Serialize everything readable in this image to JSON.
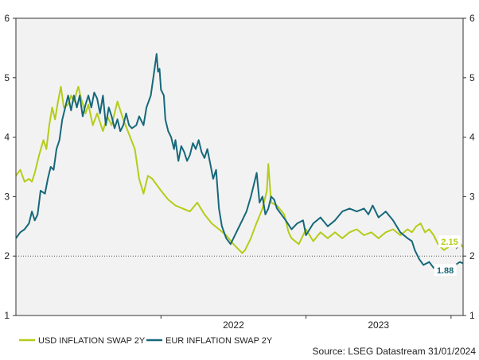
{
  "chart_data": {
    "type": "line",
    "title": "",
    "xlabel": "",
    "ylabel": "",
    "x_start": 2021.0,
    "x_end": 2024.083,
    "ylim": [
      1,
      6
    ],
    "yticks": [
      "1",
      "2",
      "3",
      "4",
      "5",
      "6"
    ],
    "xtick_labels": [
      {
        "label": "2022",
        "year": 2022.5
      },
      {
        "label": "2023",
        "year": 2023.5
      }
    ],
    "year_dividers": [
      2022.0,
      2023.0,
      2024.0
    ],
    "reference_line": 2,
    "series": [
      {
        "name": "USD INFLATION SWAP 2Y",
        "color": "#b5cc18",
        "points": [
          [
            2021.0,
            3.35
          ],
          [
            2021.03,
            3.45
          ],
          [
            2021.06,
            3.25
          ],
          [
            2021.09,
            3.3
          ],
          [
            2021.11,
            3.25
          ],
          [
            2021.13,
            3.4
          ],
          [
            2021.16,
            3.7
          ],
          [
            2021.19,
            3.95
          ],
          [
            2021.21,
            3.8
          ],
          [
            2021.23,
            4.2
          ],
          [
            2021.25,
            4.5
          ],
          [
            2021.27,
            4.3
          ],
          [
            2021.29,
            4.6
          ],
          [
            2021.31,
            4.85
          ],
          [
            2021.33,
            4.5
          ],
          [
            2021.36,
            4.55
          ],
          [
            2021.38,
            4.7
          ],
          [
            2021.4,
            4.6
          ],
          [
            2021.43,
            4.85
          ],
          [
            2021.45,
            4.65
          ],
          [
            2021.48,
            4.4
          ],
          [
            2021.5,
            4.55
          ],
          [
            2021.53,
            4.2
          ],
          [
            2021.56,
            4.4
          ],
          [
            2021.6,
            4.1
          ],
          [
            2021.63,
            4.35
          ],
          [
            2021.66,
            4.2
          ],
          [
            2021.7,
            4.6
          ],
          [
            2021.74,
            4.3
          ],
          [
            2021.78,
            4.05
          ],
          [
            2021.82,
            3.8
          ],
          [
            2021.85,
            3.3
          ],
          [
            2021.88,
            3.05
          ],
          [
            2021.91,
            3.35
          ],
          [
            2021.94,
            3.3
          ],
          [
            2021.97,
            3.2
          ],
          [
            2022.0,
            3.1
          ],
          [
            2022.05,
            2.95
          ],
          [
            2022.1,
            2.85
          ],
          [
            2022.15,
            2.8
          ],
          [
            2022.2,
            2.75
          ],
          [
            2022.25,
            2.9
          ],
          [
            2022.3,
            2.7
          ],
          [
            2022.35,
            2.55
          ],
          [
            2022.4,
            2.45
          ],
          [
            2022.45,
            2.35
          ],
          [
            2022.5,
            2.2
          ],
          [
            2022.54,
            2.1
          ],
          [
            2022.56,
            2.05
          ],
          [
            2022.58,
            2.1
          ],
          [
            2022.62,
            2.3
          ],
          [
            2022.65,
            2.5
          ],
          [
            2022.7,
            2.8
          ],
          [
            2022.73,
            3.1
          ],
          [
            2022.74,
            3.55
          ],
          [
            2022.76,
            2.9
          ],
          [
            2022.8,
            2.85
          ],
          [
            2022.85,
            2.7
          ],
          [
            2022.88,
            2.4
          ],
          [
            2022.9,
            2.3
          ],
          [
            2022.95,
            2.2
          ],
          [
            2023.0,
            2.45
          ],
          [
            2023.05,
            2.25
          ],
          [
            2023.1,
            2.4
          ],
          [
            2023.15,
            2.3
          ],
          [
            2023.2,
            2.4
          ],
          [
            2023.25,
            2.3
          ],
          [
            2023.3,
            2.4
          ],
          [
            2023.35,
            2.45
          ],
          [
            2023.4,
            2.35
          ],
          [
            2023.45,
            2.4
          ],
          [
            2023.5,
            2.3
          ],
          [
            2023.55,
            2.4
          ],
          [
            2023.6,
            2.45
          ],
          [
            2023.65,
            2.35
          ],
          [
            2023.7,
            2.45
          ],
          [
            2023.73,
            2.4
          ],
          [
            2023.76,
            2.5
          ],
          [
            2023.79,
            2.55
          ],
          [
            2023.82,
            2.4
          ],
          [
            2023.85,
            2.45
          ],
          [
            2023.88,
            2.35
          ],
          [
            2023.91,
            2.2
          ],
          [
            2023.95,
            2.1
          ],
          [
            2023.98,
            2.15
          ],
          [
            2024.02,
            2.2
          ],
          [
            2024.05,
            2.25
          ],
          [
            2024.08,
            2.15
          ]
        ]
      },
      {
        "name": "EUR INFLATION SWAP 2Y",
        "color": "#16687a",
        "points": [
          [
            2021.0,
            2.3
          ],
          [
            2021.03,
            2.4
          ],
          [
            2021.06,
            2.45
          ],
          [
            2021.09,
            2.55
          ],
          [
            2021.11,
            2.75
          ],
          [
            2021.13,
            2.6
          ],
          [
            2021.15,
            2.7
          ],
          [
            2021.17,
            3.1
          ],
          [
            2021.2,
            3.05
          ],
          [
            2021.22,
            3.3
          ],
          [
            2021.24,
            3.5
          ],
          [
            2021.26,
            3.45
          ],
          [
            2021.28,
            3.8
          ],
          [
            2021.3,
            3.95
          ],
          [
            2021.32,
            4.3
          ],
          [
            2021.34,
            4.5
          ],
          [
            2021.36,
            4.7
          ],
          [
            2021.38,
            4.45
          ],
          [
            2021.4,
            4.7
          ],
          [
            2021.42,
            4.5
          ],
          [
            2021.44,
            4.7
          ],
          [
            2021.46,
            4.35
          ],
          [
            2021.48,
            4.55
          ],
          [
            2021.5,
            4.7
          ],
          [
            2021.52,
            4.5
          ],
          [
            2021.54,
            4.75
          ],
          [
            2021.56,
            4.65
          ],
          [
            2021.58,
            4.4
          ],
          [
            2021.6,
            4.7
          ],
          [
            2021.62,
            4.2
          ],
          [
            2021.64,
            4.5
          ],
          [
            2021.66,
            4.35
          ],
          [
            2021.68,
            4.15
          ],
          [
            2021.7,
            4.3
          ],
          [
            2021.72,
            4.1
          ],
          [
            2021.74,
            4.2
          ],
          [
            2021.76,
            4.4
          ],
          [
            2021.78,
            4.2
          ],
          [
            2021.8,
            4.15
          ],
          [
            2021.83,
            4.2
          ],
          [
            2021.85,
            4.35
          ],
          [
            2021.88,
            4.2
          ],
          [
            2021.9,
            4.5
          ],
          [
            2021.93,
            4.7
          ],
          [
            2021.95,
            5.05
          ],
          [
            2021.97,
            5.4
          ],
          [
            2021.98,
            5.1
          ],
          [
            2021.99,
            5.15
          ],
          [
            2022.0,
            4.8
          ],
          [
            2022.02,
            4.7
          ],
          [
            2022.03,
            4.3
          ],
          [
            2022.05,
            4.1
          ],
          [
            2022.07,
            4.0
          ],
          [
            2022.09,
            3.8
          ],
          [
            2022.1,
            3.95
          ],
          [
            2022.12,
            3.6
          ],
          [
            2022.14,
            3.85
          ],
          [
            2022.16,
            3.75
          ],
          [
            2022.18,
            3.6
          ],
          [
            2022.2,
            3.7
          ],
          [
            2022.22,
            3.9
          ],
          [
            2022.24,
            3.8
          ],
          [
            2022.26,
            3.95
          ],
          [
            2022.28,
            3.75
          ],
          [
            2022.3,
            3.65
          ],
          [
            2022.32,
            3.8
          ],
          [
            2022.34,
            3.55
          ],
          [
            2022.36,
            3.3
          ],
          [
            2022.38,
            3.45
          ],
          [
            2022.4,
            2.8
          ],
          [
            2022.42,
            2.5
          ],
          [
            2022.45,
            2.3
          ],
          [
            2022.48,
            2.2
          ],
          [
            2022.5,
            2.3
          ],
          [
            2022.53,
            2.45
          ],
          [
            2022.56,
            2.6
          ],
          [
            2022.59,
            2.75
          ],
          [
            2022.62,
            3.0
          ],
          [
            2022.64,
            3.2
          ],
          [
            2022.66,
            3.4
          ],
          [
            2022.68,
            2.9
          ],
          [
            2022.7,
            3.0
          ],
          [
            2022.72,
            2.7
          ],
          [
            2022.74,
            2.8
          ],
          [
            2022.76,
            3.0
          ],
          [
            2022.78,
            2.95
          ],
          [
            2022.8,
            2.8
          ],
          [
            2022.83,
            2.7
          ],
          [
            2022.86,
            2.6
          ],
          [
            2022.9,
            2.45
          ],
          [
            2022.94,
            2.55
          ],
          [
            2022.98,
            2.6
          ],
          [
            2023.0,
            2.35
          ],
          [
            2023.05,
            2.55
          ],
          [
            2023.1,
            2.65
          ],
          [
            2023.15,
            2.5
          ],
          [
            2023.2,
            2.6
          ],
          [
            2023.25,
            2.75
          ],
          [
            2023.3,
            2.8
          ],
          [
            2023.35,
            2.75
          ],
          [
            2023.4,
            2.8
          ],
          [
            2023.43,
            2.7
          ],
          [
            2023.46,
            2.85
          ],
          [
            2023.5,
            2.65
          ],
          [
            2023.55,
            2.75
          ],
          [
            2023.6,
            2.6
          ],
          [
            2023.65,
            2.4
          ],
          [
            2023.7,
            2.3
          ],
          [
            2023.73,
            2.25
          ],
          [
            2023.75,
            2.1
          ],
          [
            2023.78,
            1.95
          ],
          [
            2023.81,
            1.85
          ],
          [
            2023.85,
            1.9
          ],
          [
            2023.88,
            1.8
          ],
          [
            2023.9,
            1.85
          ],
          [
            2023.93,
            1.8
          ],
          [
            2023.95,
            1.75
          ],
          [
            2023.97,
            1.85
          ],
          [
            2024.0,
            1.8
          ],
          [
            2024.03,
            1.85
          ],
          [
            2024.06,
            1.9
          ],
          [
            2024.08,
            1.88
          ]
        ]
      }
    ],
    "annotations": [
      {
        "text": "2.15",
        "series": "USD INFLATION SWAP 2Y",
        "x": 2023.99,
        "y": 2.2
      },
      {
        "text": "1.88",
        "series": "EUR INFLATION SWAP 2Y",
        "x": 2023.96,
        "y": 1.72
      }
    ]
  },
  "legend": {
    "items": [
      {
        "label": "USD INFLATION SWAP 2Y",
        "color": "#b5cc18"
      },
      {
        "label": "EUR INFLATION SWAP 2Y",
        "color": "#16687a"
      }
    ]
  },
  "source": "Source: LSEG Datastream 31/01/2024"
}
